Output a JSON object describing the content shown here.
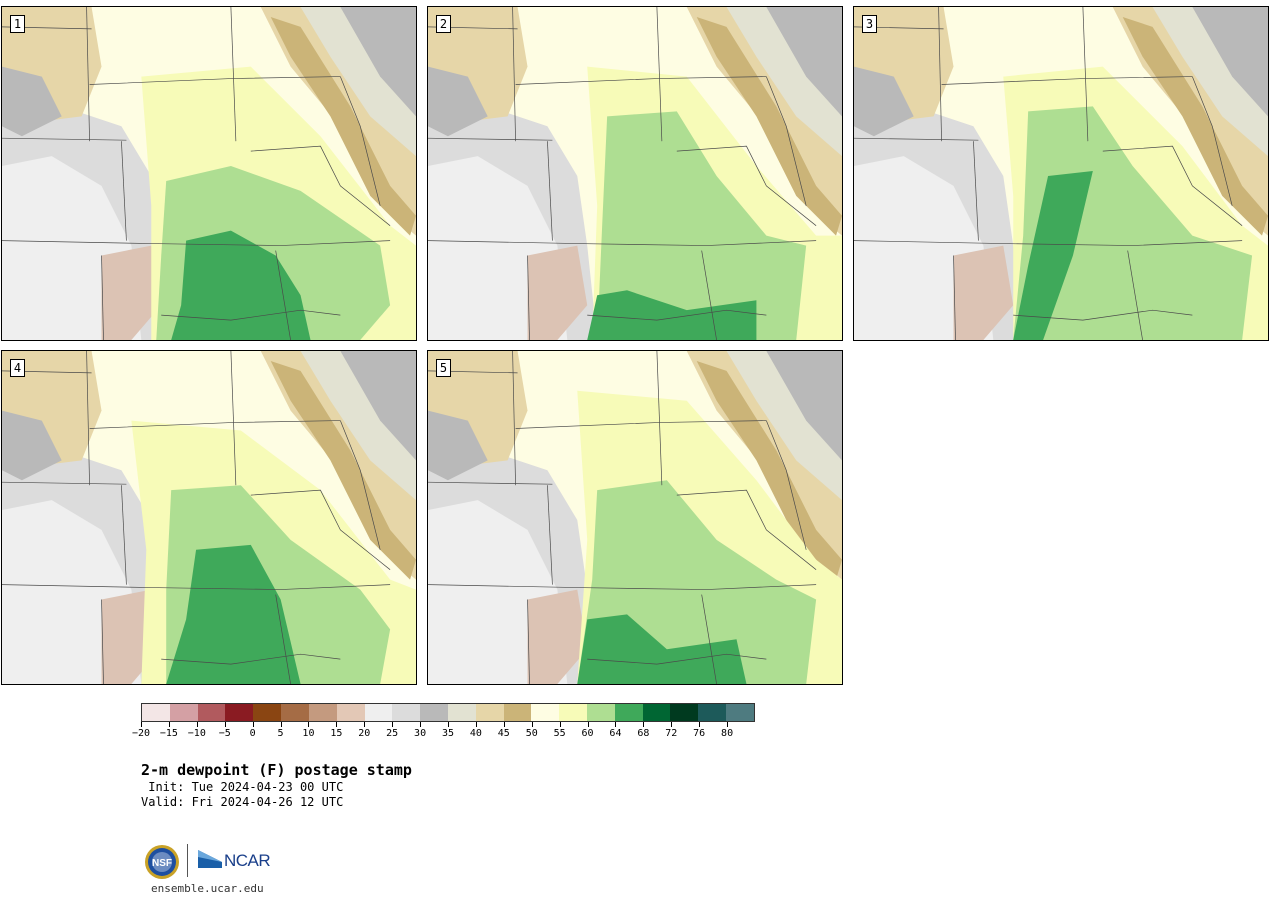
{
  "panels": [
    {
      "label": "1"
    },
    {
      "label": "2"
    },
    {
      "label": "3"
    },
    {
      "label": "4"
    },
    {
      "label": "5"
    }
  ],
  "colorbar": {
    "colors": [
      "#f3e6e6",
      "#d4a0a4",
      "#b15a5e",
      "#8a1b22",
      "#8a4512",
      "#a56c45",
      "#c49a7f",
      "#e3c8b6",
      "#efefef",
      "#dcdcdc",
      "#b9b9b9",
      "#e2e2d2",
      "#e6d6a8",
      "#cbb478",
      "#fefde3",
      "#f7fbb8",
      "#aede92",
      "#3fa95a",
      "#006633",
      "#003a1f",
      "#1d5a5a",
      "#4e7b80"
    ],
    "ticks": [
      "−20",
      "−15",
      "−10",
      "−5",
      "0",
      "5",
      "10",
      "15",
      "20",
      "25",
      "30",
      "35",
      "40",
      "45",
      "50",
      "55",
      "60",
      "64",
      "68",
      "72",
      "76",
      "80"
    ]
  },
  "title": "2-m dewpoint (F) postage stamp",
  "init": " Init: Tue 2024-04-23 00 UTC",
  "valid": "Valid: Fri 2024-04-26 12 UTC",
  "branding": {
    "nsf": "NSF",
    "ncar": "NCAR",
    "site": "ensemble.ucar.edu"
  },
  "map_colors": {
    "cold_gray": "#efefef",
    "mid_gray": "#dcdcdc",
    "dark_gray": "#b9b9b9",
    "pale": "#e2e2d2",
    "tan_light": "#e6d6a8",
    "tan": "#cbb478",
    "cream": "#fefde3",
    "yellow": "#f7fbb8",
    "green_light": "#aede92",
    "green": "#3fa95a",
    "brownish": "#dcc3b4"
  }
}
